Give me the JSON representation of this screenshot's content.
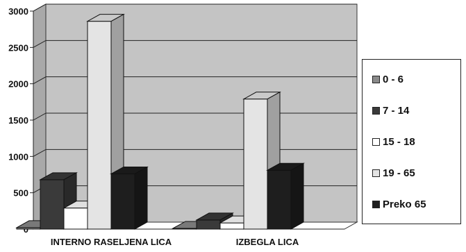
{
  "chart_data": {
    "type": "bar",
    "style": "3d-clustered-column",
    "categories": [
      "INTERNO RASELJENA LICA",
      "IZBEGLA LICA"
    ],
    "series": [
      {
        "name": "0 - 6",
        "values": [
          20,
          10
        ],
        "color": "#8a8a8a"
      },
      {
        "name": "7 - 14",
        "values": [
          680,
          125
        ],
        "color": "#3a3a3a"
      },
      {
        "name": "15 - 18",
        "values": [
          290,
          85
        ],
        "color": "#ffffff"
      },
      {
        "name": "19 - 65",
        "values": [
          2860,
          1790
        ],
        "color": "#e4e4e4"
      },
      {
        "name": "Preko 65",
        "values": [
          760,
          810
        ],
        "color": "#1e1e1e"
      }
    ],
    "y_ticks": [
      "0",
      "500",
      "1000",
      "1500",
      "2000",
      "2500",
      "3000"
    ],
    "ylim": [
      0,
      3000
    ],
    "grid": true,
    "legend_position": "right",
    "plot_background": "#c4c4c4",
    "floor_color": "#ffffff"
  }
}
